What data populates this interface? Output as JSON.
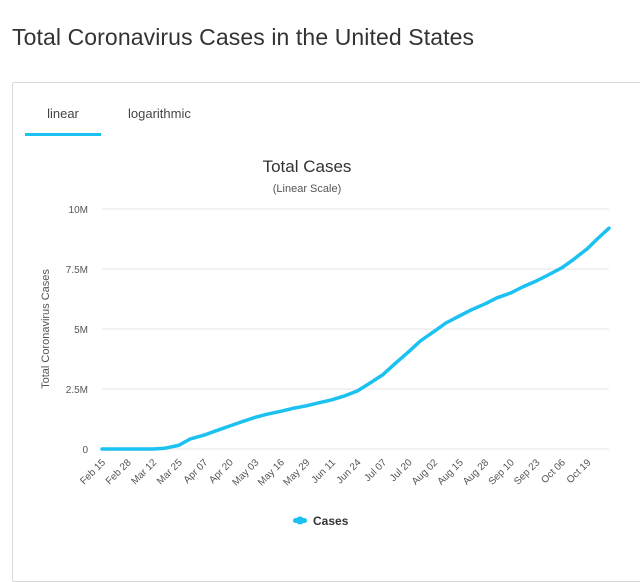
{
  "page": {
    "title": "Total Coronavirus Cases in the United States"
  },
  "tabs": [
    {
      "label": "linear",
      "active": true
    },
    {
      "label": "logarithmic",
      "active": false
    }
  ],
  "colors": {
    "series": "#1bc1f0",
    "grid": "#e6e6e6",
    "tab_active": "#1bc1f0"
  },
  "chart_data": {
    "type": "line",
    "title": "Total Cases",
    "subtitle": "(Linear Scale)",
    "xlabel": "",
    "ylabel": "Total Coronavirus Cases",
    "ylim": [
      0,
      10000000
    ],
    "yticks": [
      0,
      2500000,
      5000000,
      7500000,
      10000000
    ],
    "ytick_labels": [
      "0",
      "2.5M",
      "5M",
      "7.5M",
      "10M"
    ],
    "xtick_labels": [
      "Feb 15",
      "Feb 28",
      "Mar 12",
      "Mar 25",
      "Apr 07",
      "Apr 20",
      "May 03",
      "May 16",
      "May 29",
      "Jun 11",
      "Jun 24",
      "Jul 07",
      "Jul 20",
      "Aug 02",
      "Aug 15",
      "Aug 28",
      "Sep 10",
      "Sep 23",
      "Oct 06",
      "Oct 19"
    ],
    "xtick_days": [
      0,
      13,
      26,
      39,
      52,
      65,
      78,
      91,
      104,
      117,
      130,
      143,
      156,
      169,
      182,
      195,
      208,
      221,
      234,
      247
    ],
    "x_range_days": [
      0,
      258
    ],
    "grid": true,
    "legend_position": "bottom-center",
    "series": [
      {
        "name": "Cases",
        "day": [
          0,
          13,
          26,
          32,
          39,
          45,
          52,
          58,
          65,
          71,
          78,
          84,
          91,
          97,
          104,
          110,
          117,
          123,
          130,
          136,
          143,
          149,
          156,
          162,
          169,
          175,
          182,
          188,
          195,
          201,
          208,
          214,
          221,
          227,
          234,
          240,
          247,
          252,
          258
        ],
        "values": [
          15,
          60,
          2000,
          35000,
          150000,
          420000,
          580000,
          760000,
          960000,
          1130000,
          1320000,
          1450000,
          1570000,
          1690000,
          1800000,
          1920000,
          2050000,
          2200000,
          2420000,
          2730000,
          3100000,
          3550000,
          4050000,
          4500000,
          4900000,
          5250000,
          5550000,
          5800000,
          6050000,
          6300000,
          6500000,
          6750000,
          7000000,
          7250000,
          7550000,
          7900000,
          8350000,
          8750000,
          9200000
        ]
      }
    ]
  }
}
